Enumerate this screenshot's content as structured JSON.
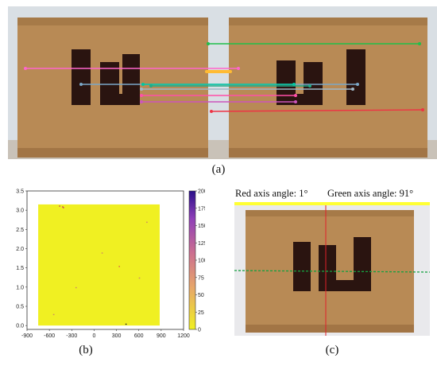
{
  "panel_a": {
    "caption": "(a)",
    "match_lines": [
      {
        "color": "#1fbf4a"
      },
      {
        "color": "#ff66cc"
      },
      {
        "color": "#ffbb33"
      },
      {
        "color": "#7aa7c7"
      },
      {
        "color": "#00c8a0"
      },
      {
        "color": "#22aa88"
      },
      {
        "color": "#a0b8c8"
      },
      {
        "color": "#ff4fa8"
      },
      {
        "color": "#cc55bb"
      },
      {
        "color": "#ee3344"
      }
    ]
  },
  "panel_b": {
    "caption": "(b)",
    "colormap": [
      "#f0f022",
      "#e7a76a",
      "#cc6f8f",
      "#8f3fb8",
      "#2a0f8a"
    ],
    "chart_data": {
      "type": "heatmap",
      "title": "",
      "xlabel": "",
      "ylabel": "",
      "xlim": [
        -900,
        1200
      ],
      "ylim": [
        -0.1,
        3.5
      ],
      "x_ticks": [
        "-900",
        "-600",
        "-300",
        "0",
        "300",
        "600",
        "900",
        "1200"
      ],
      "y_ticks": [
        "0.0",
        "0.5",
        "1.0",
        "1.5",
        "2.0",
        "2.5",
        "3.0",
        "3.5"
      ],
      "colorbar": {
        "min": 0,
        "max": 200,
        "ticks": [
          "0",
          "25",
          "50",
          "75",
          "100",
          "125",
          "150",
          "175",
          "200"
        ]
      },
      "data_extent": {
        "x": [
          -750,
          880
        ],
        "y": [
          0.0,
          3.15
        ]
      },
      "dominant_value": 0
    }
  },
  "panel_c": {
    "caption": "(c)",
    "red_axis_label": "Red axis angle: 1°",
    "green_axis_label": "Green axis angle: 91°"
  }
}
